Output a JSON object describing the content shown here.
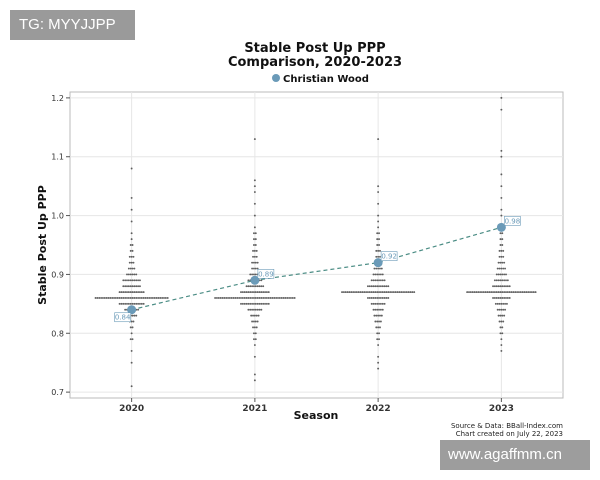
{
  "watermarks": {
    "top": "TG: MYYJJPP",
    "bottom": "www.agaffmm.cn"
  },
  "chart_data": {
    "type": "scatter",
    "title_line1": "Stable Post Up PPP",
    "title_line2": "Comparison, 2020-2023",
    "xlabel": "Season",
    "ylabel": "Stable Post Up PPP",
    "categories": [
      "2020",
      "2021",
      "2022",
      "2023"
    ],
    "ylim": [
      0.69,
      1.21
    ],
    "yticks": [
      "0.7",
      "0.8",
      "0.9",
      "1.0",
      "1.1",
      "1.2"
    ],
    "ytick_values": [
      0.7,
      0.8,
      0.9,
      1.0,
      1.1,
      1.2
    ],
    "grid": true,
    "legend": {
      "position": "top",
      "entries": [
        "Christian Wood"
      ]
    },
    "highlight_series": {
      "name": "Christian Wood",
      "color": "#6a9ab8",
      "values": [
        0.84,
        0.89,
        0.92,
        0.98
      ],
      "labels": [
        "0.84",
        "0.89",
        "0.92",
        "0.98"
      ]
    },
    "background_color": "#444444",
    "league_distribution": [
      {
        "category": "2020",
        "bins": [
          {
            "y": 0.71,
            "n": 1
          },
          {
            "y": 0.75,
            "n": 1
          },
          {
            "y": 0.77,
            "n": 1
          },
          {
            "y": 0.79,
            "n": 2
          },
          {
            "y": 0.8,
            "n": 1
          },
          {
            "y": 0.81,
            "n": 2
          },
          {
            "y": 0.82,
            "n": 3
          },
          {
            "y": 0.83,
            "n": 6
          },
          {
            "y": 0.84,
            "n": 8
          },
          {
            "y": 0.85,
            "n": 14
          },
          {
            "y": 0.86,
            "n": 40
          },
          {
            "y": 0.87,
            "n": 14
          },
          {
            "y": 0.88,
            "n": 10
          },
          {
            "y": 0.89,
            "n": 10
          },
          {
            "y": 0.9,
            "n": 6
          },
          {
            "y": 0.91,
            "n": 4
          },
          {
            "y": 0.92,
            "n": 3
          },
          {
            "y": 0.93,
            "n": 3
          },
          {
            "y": 0.94,
            "n": 2
          },
          {
            "y": 0.95,
            "n": 2
          },
          {
            "y": 0.96,
            "n": 1
          },
          {
            "y": 0.97,
            "n": 1
          },
          {
            "y": 0.99,
            "n": 1
          },
          {
            "y": 1.01,
            "n": 1
          },
          {
            "y": 1.03,
            "n": 1
          },
          {
            "y": 1.08,
            "n": 1
          }
        ]
      },
      {
        "category": "2021",
        "bins": [
          {
            "y": 0.72,
            "n": 1
          },
          {
            "y": 0.73,
            "n": 1
          },
          {
            "y": 0.76,
            "n": 1
          },
          {
            "y": 0.78,
            "n": 1
          },
          {
            "y": 0.79,
            "n": 2
          },
          {
            "y": 0.8,
            "n": 2
          },
          {
            "y": 0.81,
            "n": 3
          },
          {
            "y": 0.82,
            "n": 4
          },
          {
            "y": 0.83,
            "n": 5
          },
          {
            "y": 0.84,
            "n": 8
          },
          {
            "y": 0.85,
            "n": 16
          },
          {
            "y": 0.86,
            "n": 44
          },
          {
            "y": 0.87,
            "n": 16
          },
          {
            "y": 0.88,
            "n": 10
          },
          {
            "y": 0.89,
            "n": 8
          },
          {
            "y": 0.9,
            "n": 6
          },
          {
            "y": 0.91,
            "n": 4
          },
          {
            "y": 0.92,
            "n": 4
          },
          {
            "y": 0.93,
            "n": 3
          },
          {
            "y": 0.94,
            "n": 3
          },
          {
            "y": 0.95,
            "n": 2
          },
          {
            "y": 0.96,
            "n": 2
          },
          {
            "y": 0.97,
            "n": 2
          },
          {
            "y": 0.98,
            "n": 1
          },
          {
            "y": 1.0,
            "n": 1
          },
          {
            "y": 1.02,
            "n": 1
          },
          {
            "y": 1.04,
            "n": 1
          },
          {
            "y": 1.05,
            "n": 1
          },
          {
            "y": 1.06,
            "n": 1
          },
          {
            "y": 1.13,
            "n": 1
          }
        ]
      },
      {
        "category": "2022",
        "bins": [
          {
            "y": 0.74,
            "n": 1
          },
          {
            "y": 0.75,
            "n": 1
          },
          {
            "y": 0.76,
            "n": 1
          },
          {
            "y": 0.78,
            "n": 1
          },
          {
            "y": 0.79,
            "n": 2
          },
          {
            "y": 0.8,
            "n": 2
          },
          {
            "y": 0.81,
            "n": 3
          },
          {
            "y": 0.82,
            "n": 4
          },
          {
            "y": 0.83,
            "n": 5
          },
          {
            "y": 0.84,
            "n": 6
          },
          {
            "y": 0.85,
            "n": 8
          },
          {
            "y": 0.86,
            "n": 12
          },
          {
            "y": 0.87,
            "n": 40
          },
          {
            "y": 0.88,
            "n": 12
          },
          {
            "y": 0.89,
            "n": 8
          },
          {
            "y": 0.9,
            "n": 6
          },
          {
            "y": 0.91,
            "n": 5
          },
          {
            "y": 0.92,
            "n": 4
          },
          {
            "y": 0.93,
            "n": 3
          },
          {
            "y": 0.94,
            "n": 3
          },
          {
            "y": 0.95,
            "n": 2
          },
          {
            "y": 0.96,
            "n": 2
          },
          {
            "y": 0.97,
            "n": 2
          },
          {
            "y": 0.98,
            "n": 1
          },
          {
            "y": 0.99,
            "n": 1
          },
          {
            "y": 1.0,
            "n": 1
          },
          {
            "y": 1.02,
            "n": 1
          },
          {
            "y": 1.04,
            "n": 1
          },
          {
            "y": 1.05,
            "n": 1
          },
          {
            "y": 1.13,
            "n": 1
          }
        ]
      },
      {
        "category": "2023",
        "bins": [
          {
            "y": 0.77,
            "n": 1
          },
          {
            "y": 0.78,
            "n": 1
          },
          {
            "y": 0.79,
            "n": 1
          },
          {
            "y": 0.8,
            "n": 2
          },
          {
            "y": 0.81,
            "n": 2
          },
          {
            "y": 0.82,
            "n": 3
          },
          {
            "y": 0.83,
            "n": 4
          },
          {
            "y": 0.84,
            "n": 5
          },
          {
            "y": 0.85,
            "n": 7
          },
          {
            "y": 0.86,
            "n": 10
          },
          {
            "y": 0.87,
            "n": 38
          },
          {
            "y": 0.88,
            "n": 10
          },
          {
            "y": 0.89,
            "n": 8
          },
          {
            "y": 0.9,
            "n": 6
          },
          {
            "y": 0.91,
            "n": 5
          },
          {
            "y": 0.92,
            "n": 4
          },
          {
            "y": 0.93,
            "n": 3
          },
          {
            "y": 0.94,
            "n": 3
          },
          {
            "y": 0.95,
            "n": 2
          },
          {
            "y": 0.96,
            "n": 2
          },
          {
            "y": 0.97,
            "n": 2
          },
          {
            "y": 0.98,
            "n": 1
          },
          {
            "y": 1.0,
            "n": 1
          },
          {
            "y": 1.01,
            "n": 1
          },
          {
            "y": 1.03,
            "n": 1
          },
          {
            "y": 1.05,
            "n": 1
          },
          {
            "y": 1.07,
            "n": 1
          },
          {
            "y": 1.1,
            "n": 1
          },
          {
            "y": 1.11,
            "n": 1
          },
          {
            "y": 1.18,
            "n": 1
          },
          {
            "y": 1.2,
            "n": 1
          }
        ]
      }
    ],
    "source_line1": "Source & Data: BBall-Index.com",
    "source_line2": "Chart created on July 22, 2023"
  }
}
